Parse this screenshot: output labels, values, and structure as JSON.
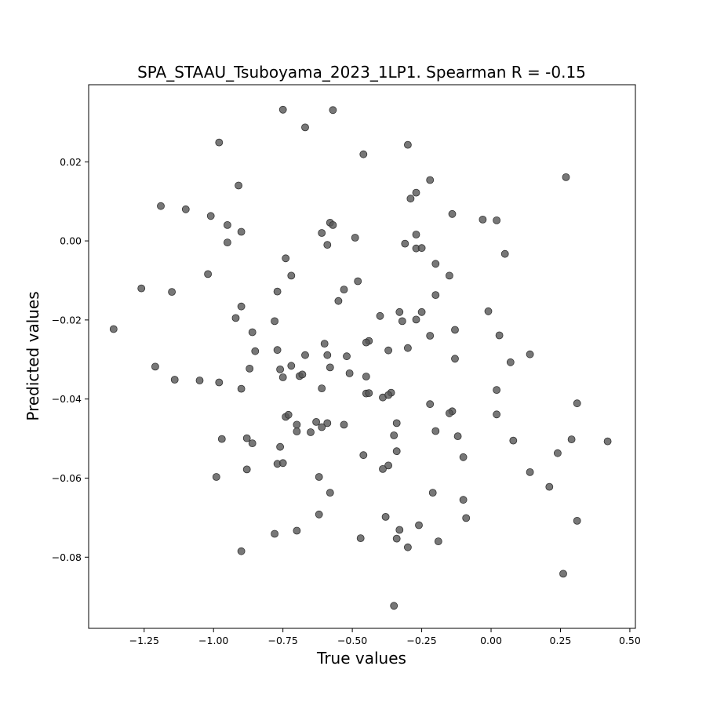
{
  "chart_data": {
    "type": "scatter",
    "title": "SPA_STAAU_Tsuboyama_2023_1LP1. Spearman R = -0.15",
    "xlabel": "True values",
    "ylabel": "Predicted values",
    "xlim": [
      -1.45,
      0.52
    ],
    "ylim": [
      -0.098,
      0.0395
    ],
    "xticks": [
      -1.25,
      -1.0,
      -0.75,
      -0.5,
      -0.25,
      0.0,
      0.25,
      0.5
    ],
    "xtick_labels": [
      "−1.25",
      "−1.00",
      "−0.75",
      "−0.50",
      "−0.25",
      "0.00",
      "0.25",
      "0.50"
    ],
    "yticks": [
      -0.08,
      -0.06,
      -0.04,
      -0.02,
      0.0,
      0.02
    ],
    "ytick_labels": [
      "−0.08",
      "−0.06",
      "−0.04",
      "−0.02",
      "0.00",
      "0.02"
    ],
    "grid": false,
    "marker_color": "#555555",
    "points": [
      [
        -0.75,
        0.0332
      ],
      [
        -0.67,
        0.0287
      ],
      [
        -0.57,
        0.0331
      ],
      [
        -0.98,
        0.0249
      ],
      [
        -0.46,
        0.0219
      ],
      [
        -0.3,
        0.0243
      ],
      [
        0.27,
        0.0161
      ],
      [
        -0.91,
        0.014
      ],
      [
        -0.22,
        0.0154
      ],
      [
        -0.27,
        0.0122
      ],
      [
        -0.29,
        0.0107
      ],
      [
        -1.19,
        0.0088
      ],
      [
        -1.1,
        0.008
      ],
      [
        -1.01,
        0.0063
      ],
      [
        -0.95,
        0.004
      ],
      [
        -0.9,
        0.0023
      ],
      [
        -0.95,
        -0.0004
      ],
      [
        -0.14,
        0.0068
      ],
      [
        -0.03,
        0.0054
      ],
      [
        0.02,
        0.0052
      ],
      [
        -0.58,
        0.0046
      ],
      [
        -0.57,
        0.004
      ],
      [
        -0.61,
        0.002
      ],
      [
        -0.49,
        0.0008
      ],
      [
        -0.27,
        0.0016
      ],
      [
        -0.31,
        -0.0007
      ],
      [
        -0.27,
        -0.0019
      ],
      [
        -0.25,
        -0.0018
      ],
      [
        -0.59,
        -0.001
      ],
      [
        0.05,
        -0.0033
      ],
      [
        -0.74,
        -0.0044
      ],
      [
        -0.2,
        -0.0058
      ],
      [
        -1.02,
        -0.0084
      ],
      [
        -0.72,
        -0.0088
      ],
      [
        -0.15,
        -0.0088
      ],
      [
        -0.48,
        -0.0102
      ],
      [
        -1.26,
        -0.012
      ],
      [
        -1.15,
        -0.0129
      ],
      [
        -0.77,
        -0.0128
      ],
      [
        -0.53,
        -0.0123
      ],
      [
        -0.2,
        -0.0137
      ],
      [
        -0.55,
        -0.0152
      ],
      [
        -0.9,
        -0.0166
      ],
      [
        -0.01,
        -0.0178
      ],
      [
        -0.33,
        -0.018
      ],
      [
        -0.25,
        -0.018
      ],
      [
        -0.92,
        -0.0195
      ],
      [
        -0.4,
        -0.019
      ],
      [
        -0.78,
        -0.0203
      ],
      [
        -0.32,
        -0.0203
      ],
      [
        -0.27,
        -0.0199
      ],
      [
        -1.36,
        -0.0223
      ],
      [
        -0.86,
        -0.0231
      ],
      [
        -0.13,
        -0.0225
      ],
      [
        -0.22,
        -0.024
      ],
      [
        0.03,
        -0.0239
      ],
      [
        -0.6,
        -0.026
      ],
      [
        -0.44,
        -0.0253
      ],
      [
        -0.45,
        -0.0257
      ],
      [
        -0.77,
        -0.0276
      ],
      [
        -0.85,
        -0.0279
      ],
      [
        -0.37,
        -0.0277
      ],
      [
        -0.3,
        -0.0271
      ],
      [
        0.14,
        -0.0287
      ],
      [
        -0.67,
        -0.0289
      ],
      [
        -0.59,
        -0.0289
      ],
      [
        -0.52,
        -0.0292
      ],
      [
        -0.13,
        -0.0298
      ],
      [
        0.07,
        -0.0307
      ],
      [
        -1.21,
        -0.0318
      ],
      [
        -0.87,
        -0.0323
      ],
      [
        -0.76,
        -0.0325
      ],
      [
        -0.72,
        -0.0316
      ],
      [
        -0.58,
        -0.032
      ],
      [
        -0.51,
        -0.0335
      ],
      [
        -0.75,
        -0.0345
      ],
      [
        -0.69,
        -0.0342
      ],
      [
        -0.68,
        -0.0338
      ],
      [
        -0.45,
        -0.0343
      ],
      [
        -1.14,
        -0.0351
      ],
      [
        -1.05,
        -0.0353
      ],
      [
        -0.98,
        -0.0358
      ],
      [
        -0.9,
        -0.0374
      ],
      [
        -0.61,
        -0.0373
      ],
      [
        0.02,
        -0.0377
      ],
      [
        -0.45,
        -0.0386
      ],
      [
        -0.44,
        -0.0385
      ],
      [
        -0.36,
        -0.0384
      ],
      [
        -0.39,
        -0.0396
      ],
      [
        -0.37,
        -0.039
      ],
      [
        -0.22,
        -0.0413
      ],
      [
        0.31,
        -0.0411
      ],
      [
        -0.14,
        -0.0431
      ],
      [
        -0.15,
        -0.0436
      ],
      [
        0.02,
        -0.0439
      ],
      [
        -0.74,
        -0.0445
      ],
      [
        -0.73,
        -0.044
      ],
      [
        -0.63,
        -0.0458
      ],
      [
        -0.59,
        -0.0461
      ],
      [
        -0.7,
        -0.0465
      ],
      [
        -0.61,
        -0.0471
      ],
      [
        -0.53,
        -0.0465
      ],
      [
        -0.34,
        -0.0461
      ],
      [
        -0.7,
        -0.0482
      ],
      [
        -0.65,
        -0.0484
      ],
      [
        -0.2,
        -0.0481
      ],
      [
        -0.35,
        -0.0492
      ],
      [
        -0.12,
        -0.0494
      ],
      [
        -0.97,
        -0.0501
      ],
      [
        -0.88,
        -0.0499
      ],
      [
        0.29,
        -0.0502
      ],
      [
        0.42,
        -0.0507
      ],
      [
        -0.86,
        -0.0512
      ],
      [
        0.08,
        -0.0505
      ],
      [
        -0.76,
        -0.0521
      ],
      [
        -0.34,
        -0.0532
      ],
      [
        0.24,
        -0.0537
      ],
      [
        -0.46,
        -0.0542
      ],
      [
        -0.1,
        -0.0547
      ],
      [
        -0.77,
        -0.0564
      ],
      [
        -0.75,
        -0.0562
      ],
      [
        -0.37,
        -0.0568
      ],
      [
        -0.39,
        -0.0577
      ],
      [
        -0.88,
        -0.0578
      ],
      [
        0.14,
        -0.0585
      ],
      [
        -0.99,
        -0.0597
      ],
      [
        -0.62,
        -0.0597
      ],
      [
        0.21,
        -0.0622
      ],
      [
        -0.58,
        -0.0637
      ],
      [
        -0.21,
        -0.0637
      ],
      [
        -0.1,
        -0.0655
      ],
      [
        -0.62,
        -0.0692
      ],
      [
        -0.38,
        -0.0698
      ],
      [
        -0.09,
        -0.0701
      ],
      [
        0.31,
        -0.0708
      ],
      [
        -0.26,
        -0.0719
      ],
      [
        -0.33,
        -0.0731
      ],
      [
        -0.7,
        -0.0733
      ],
      [
        -0.78,
        -0.0741
      ],
      [
        -0.47,
        -0.0752
      ],
      [
        -0.34,
        -0.0753
      ],
      [
        -0.19,
        -0.076
      ],
      [
        -0.3,
        -0.0775
      ],
      [
        -0.9,
        -0.0785
      ],
      [
        0.26,
        -0.0842
      ],
      [
        -0.35,
        -0.0923
      ]
    ]
  }
}
